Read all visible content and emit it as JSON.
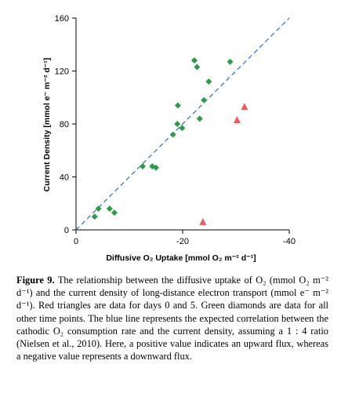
{
  "chart_data": {
    "type": "scatter",
    "xlabel": "Diffusive O₂ Uptake [mmol O₂ m⁻² d⁻¹]",
    "ylabel": "Current Density [mmol e⁻ m⁻² d⁻¹]",
    "xlim": [
      0,
      -40
    ],
    "ylim": [
      0,
      160
    ],
    "x_ticks": [
      0,
      -20,
      -40
    ],
    "x_tick_labels": [
      "0",
      "-20",
      "-40"
    ],
    "y_ticks": [
      0,
      40,
      80,
      120,
      160
    ],
    "y_tick_labels": [
      "0",
      "40",
      "80",
      "120",
      "160"
    ],
    "grid": false,
    "series": [
      {
        "marker": "diamond",
        "color": "#2e9b4a",
        "points": [
          {
            "x": -3.5,
            "y": 10
          },
          {
            "x": -4.2,
            "y": 16
          },
          {
            "x": -6.3,
            "y": 16
          },
          {
            "x": -7.2,
            "y": 13
          },
          {
            "x": -12.5,
            "y": 48
          },
          {
            "x": -14.3,
            "y": 48
          },
          {
            "x": -15,
            "y": 47
          },
          {
            "x": -18.2,
            "y": 72
          },
          {
            "x": -19,
            "y": 80
          },
          {
            "x": -19.1,
            "y": 94
          },
          {
            "x": -19.9,
            "y": 77
          },
          {
            "x": -22.2,
            "y": 128
          },
          {
            "x": -22.7,
            "y": 123
          },
          {
            "x": -23.2,
            "y": 84
          },
          {
            "x": -24,
            "y": 98
          },
          {
            "x": -24.9,
            "y": 112
          },
          {
            "x": -28.9,
            "y": 127
          }
        ]
      },
      {
        "marker": "triangle",
        "color": "#f05a5a",
        "points": [
          {
            "x": -23.8,
            "y": 6
          },
          {
            "x": -30.2,
            "y": 83
          },
          {
            "x": -31.6,
            "y": 93
          }
        ]
      }
    ],
    "reference_line": {
      "style": "dashed",
      "color": "#2f6fb6",
      "from": [
        0,
        0
      ],
      "to": [
        -40,
        160
      ]
    }
  },
  "caption": {
    "label": "Figure 9.",
    "text": " The relationship between the diffusive uptake of O₂ (mmol O₂ m⁻² d⁻¹) and the current density of long-distance electron transport (mmol e⁻ m⁻² d⁻¹). Red triangles are data for days 0 and 5. Green diamonds are data for all other time points. The blue line represents the expected correlation between the cathodic O₂ consumption rate and the current density, assuming a 1 : 4 ratio (Nielsen et al., 2010). Here, a positive value indicates an upward flux, whereas a negative value represents a downward flux."
  }
}
